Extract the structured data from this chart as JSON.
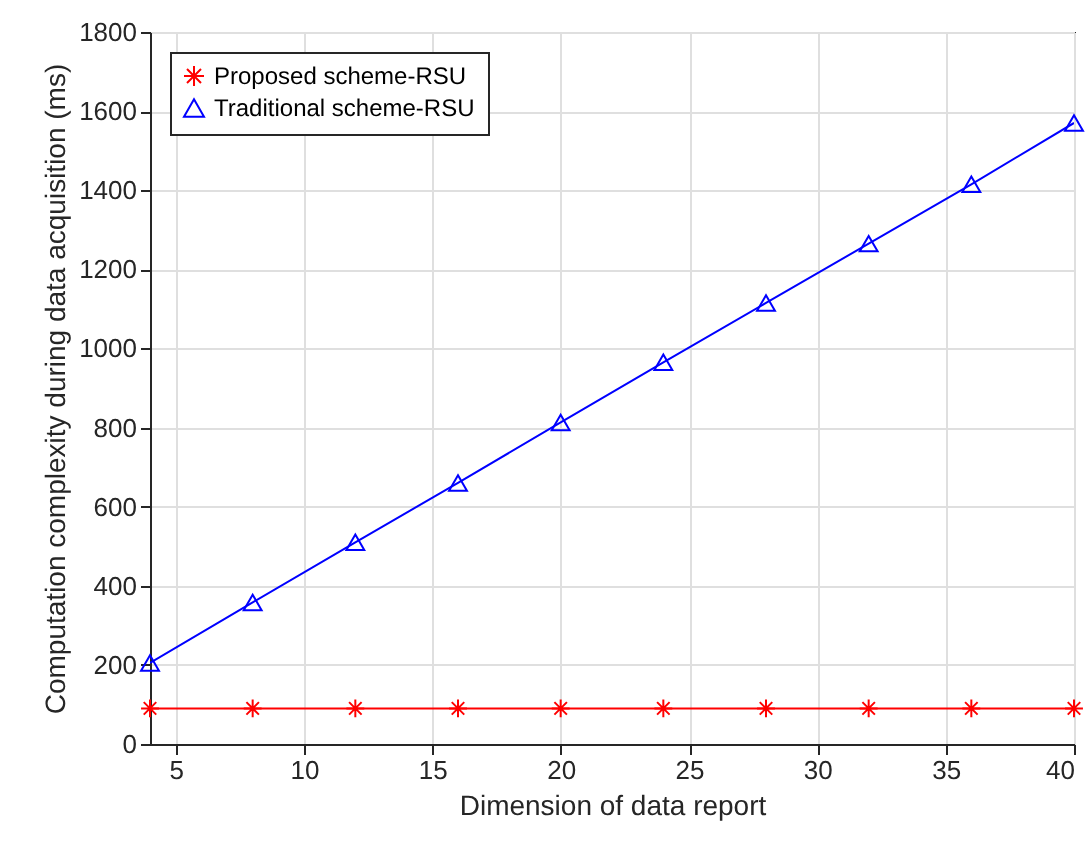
{
  "chart_data": {
    "type": "line",
    "xlabel": "Dimension of data report",
    "ylabel": "Computation complexity during data acquisition (ms)",
    "x": [
      4,
      8,
      12,
      16,
      20,
      24,
      28,
      32,
      36,
      40
    ],
    "series": [
      {
        "name": "Proposed scheme-RSU",
        "color": "#ff0000",
        "marker": "cross",
        "values": [
          90,
          90,
          90,
          90,
          90,
          90,
          90,
          90,
          90,
          90
        ]
      },
      {
        "name": "Traditional scheme-RSU",
        "color": "#0000ff",
        "marker": "triangle",
        "values": [
          205,
          358,
          510,
          660,
          813,
          965,
          1115,
          1265,
          1415,
          1570
        ]
      }
    ],
    "xlim": [
      4,
      40
    ],
    "xticks": [
      5,
      10,
      15,
      20,
      25,
      30,
      35,
      40
    ],
    "ylim": [
      0,
      1800
    ],
    "yticks": [
      0,
      200,
      400,
      600,
      800,
      1000,
      1200,
      1400,
      1600,
      1800
    ],
    "grid": true,
    "legend": "top left"
  }
}
